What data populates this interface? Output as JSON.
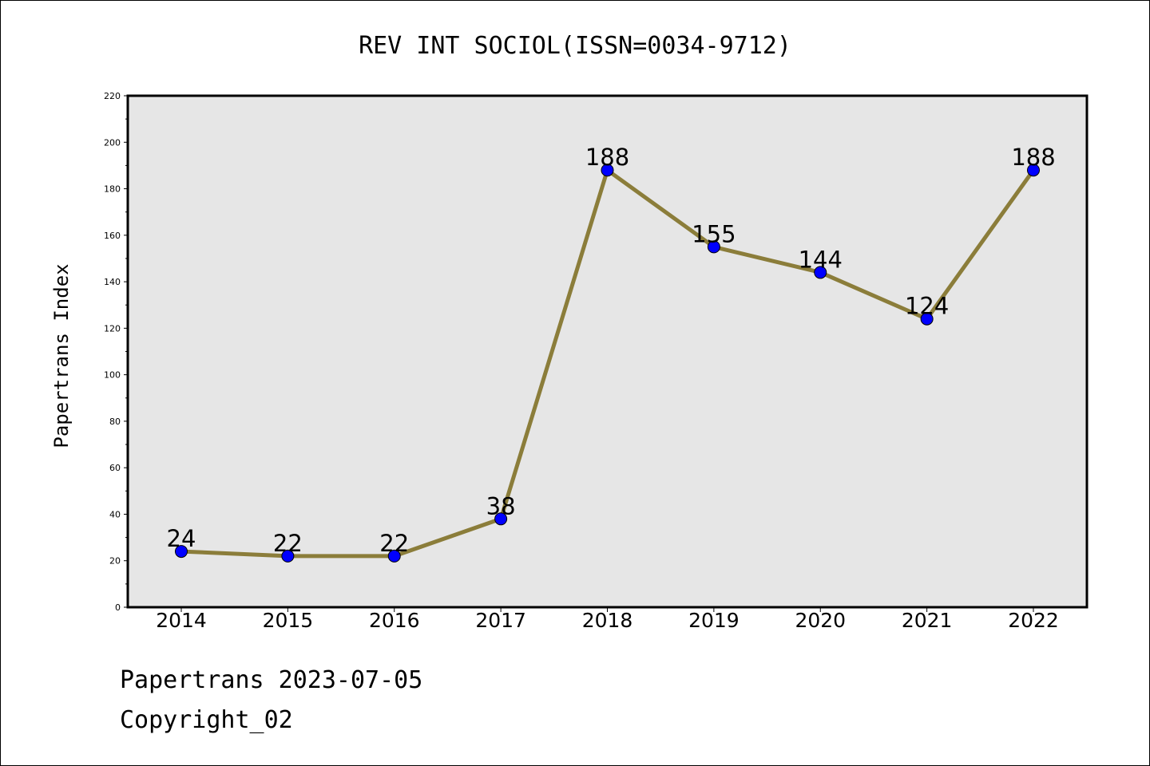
{
  "chart_data": {
    "type": "line",
    "title": "REV INT SOCIOL(ISSN=0034-9712)",
    "xlabel": "",
    "ylabel": "Papertrans Index",
    "categories": [
      "2014",
      "2015",
      "2016",
      "2017",
      "2018",
      "2019",
      "2020",
      "2021",
      "2022"
    ],
    "series": [
      {
        "values": [
          24,
          22,
          22,
          38,
          188,
          155,
          144,
          124,
          188
        ],
        "line_color": "#8b7d3a",
        "marker_color": "#0000ff"
      }
    ],
    "data_labels": [
      "24",
      "22",
      "22",
      "38",
      "188",
      "155",
      "144",
      "124",
      "188"
    ],
    "ylim": [
      0,
      220
    ],
    "y_ticks": [
      "0",
      "20",
      "40",
      "60",
      "80",
      "100",
      "120",
      "140",
      "160",
      "180",
      "200",
      "220"
    ],
    "plot_background": "#e6e6e6",
    "grid": false
  },
  "footer": {
    "credit": "Papertrans 2023-07-05",
    "copyright": "Copyright_02"
  }
}
